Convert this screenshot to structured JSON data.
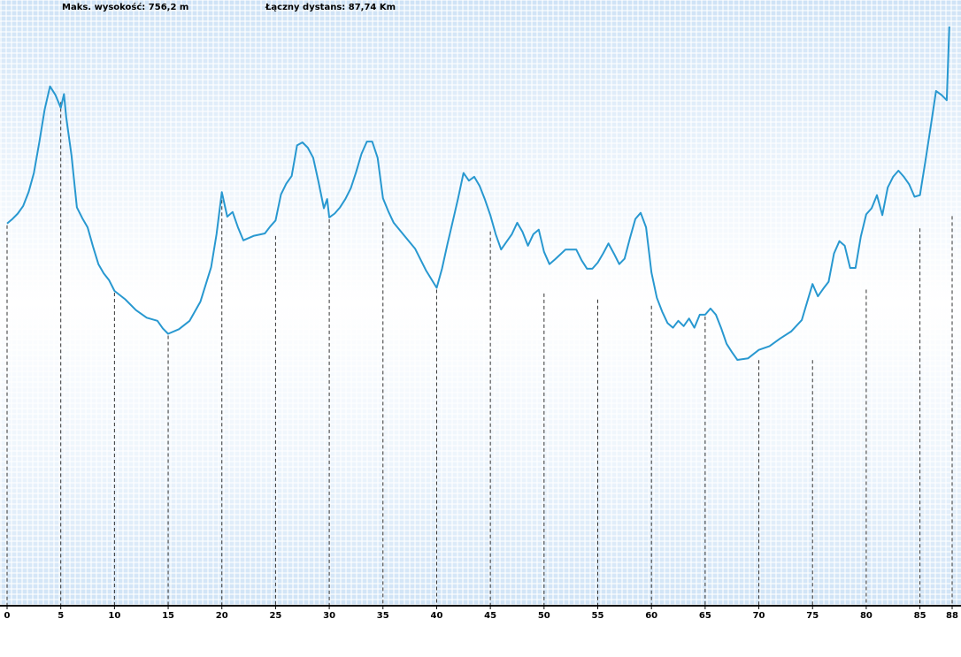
{
  "header": {
    "max_elevation_label": "Maks. wysokość:",
    "max_elevation_value": "756,2 m",
    "distance_label": "Łączny dystans:",
    "distance_value": "87,74 Km"
  },
  "colors": {
    "line": "#2898d0",
    "axis": "#000000",
    "dash": "#333333"
  },
  "chart_data": {
    "type": "line",
    "title": "",
    "xlabel": "",
    "ylabel": "",
    "xlim": [
      0,
      88
    ],
    "ylim": [
      0,
      756.2
    ],
    "grid": false,
    "x_ticks": [
      0,
      5,
      10,
      15,
      20,
      25,
      30,
      35,
      40,
      45,
      50,
      55,
      60,
      65,
      70,
      75,
      80,
      85,
      88
    ],
    "tick_labels": [
      "0",
      "5",
      "10",
      "15",
      "20",
      "25",
      "30",
      "35",
      "40",
      "45",
      "50",
      "55",
      "60",
      "65",
      "70",
      "75",
      "80",
      "85",
      "88"
    ],
    "marker_values": [
      499,
      660,
      411,
      355,
      540,
      485,
      507,
      503,
      415,
      491,
      410,
      402,
      394,
      380,
      323,
      323,
      415,
      495,
      511,
      756
    ],
    "series": [
      {
        "values": [
          [
            0,
            499
          ],
          [
            0.5,
            505
          ],
          [
            1,
            512
          ],
          [
            1.5,
            522
          ],
          [
            2,
            540
          ],
          [
            2.5,
            565
          ],
          [
            3,
            605
          ],
          [
            3.5,
            648
          ],
          [
            4,
            678
          ],
          [
            4.5,
            667
          ],
          [
            5,
            650
          ],
          [
            5.3,
            668
          ],
          [
            5.5,
            638
          ],
          [
            6,
            588
          ],
          [
            6.5,
            520
          ],
          [
            7,
            506
          ],
          [
            7.5,
            494
          ],
          [
            8,
            469
          ],
          [
            8.5,
            446
          ],
          [
            9,
            434
          ],
          [
            9.5,
            425
          ],
          [
            10,
            411
          ],
          [
            11,
            400
          ],
          [
            12,
            386
          ],
          [
            13,
            376
          ],
          [
            14,
            372
          ],
          [
            14.5,
            362
          ],
          [
            15,
            355
          ],
          [
            16,
            361
          ],
          [
            17,
            372
          ],
          [
            18,
            397
          ],
          [
            19,
            442
          ],
          [
            19.5,
            485
          ],
          [
            20,
            540
          ],
          [
            20.5,
            508
          ],
          [
            21,
            514
          ],
          [
            21.5,
            494
          ],
          [
            22,
            477
          ],
          [
            23,
            483
          ],
          [
            24,
            486
          ],
          [
            24.5,
            495
          ],
          [
            25,
            503
          ],
          [
            25.5,
            537
          ],
          [
            26,
            551
          ],
          [
            26.5,
            561
          ],
          [
            27,
            601
          ],
          [
            27.5,
            605
          ],
          [
            28,
            598
          ],
          [
            28.5,
            585
          ],
          [
            29,
            553
          ],
          [
            29.5,
            519
          ],
          [
            29.8,
            531
          ],
          [
            30,
            507
          ],
          [
            30.5,
            512
          ],
          [
            31,
            520
          ],
          [
            31.5,
            531
          ],
          [
            32,
            545
          ],
          [
            32.5,
            566
          ],
          [
            33,
            590
          ],
          [
            33.5,
            606
          ],
          [
            34,
            606
          ],
          [
            34.5,
            585
          ],
          [
            35,
            532
          ],
          [
            35.5,
            515
          ],
          [
            36,
            500
          ],
          [
            37,
            483
          ],
          [
            38,
            466
          ],
          [
            39,
            438
          ],
          [
            40,
            415
          ],
          [
            40.5,
            440
          ],
          [
            41,
            472
          ],
          [
            41.5,
            502
          ],
          [
            42,
            532
          ],
          [
            42.5,
            565
          ],
          [
            43,
            555
          ],
          [
            43.5,
            560
          ],
          [
            44,
            548
          ],
          [
            44.5,
            530
          ],
          [
            45,
            510
          ],
          [
            45.5,
            485
          ],
          [
            46,
            465
          ],
          [
            46.5,
            475
          ],
          [
            47,
            485
          ],
          [
            47.5,
            500
          ],
          [
            48,
            488
          ],
          [
            48.5,
            470
          ],
          [
            49,
            485
          ],
          [
            49.5,
            491
          ],
          [
            50,
            462
          ],
          [
            50.5,
            446
          ],
          [
            51,
            452
          ],
          [
            52,
            465
          ],
          [
            53,
            465
          ],
          [
            53.5,
            451
          ],
          [
            54,
            440
          ],
          [
            54.5,
            440
          ],
          [
            55,
            448
          ],
          [
            55.5,
            460
          ],
          [
            56,
            473
          ],
          [
            56.5,
            460
          ],
          [
            57,
            446
          ],
          [
            57.5,
            453
          ],
          [
            58,
            480
          ],
          [
            58.5,
            505
          ],
          [
            59,
            513
          ],
          [
            59.5,
            494
          ],
          [
            60,
            435
          ],
          [
            60.5,
            402
          ],
          [
            61,
            384
          ],
          [
            61.5,
            369
          ],
          [
            62,
            363
          ],
          [
            62.5,
            372
          ],
          [
            63,
            365
          ],
          [
            63.5,
            375
          ],
          [
            64,
            363
          ],
          [
            64.5,
            380
          ],
          [
            65,
            380
          ],
          [
            65.5,
            388
          ],
          [
            66,
            380
          ],
          [
            66.5,
            362
          ],
          [
            67,
            342
          ],
          [
            67.5,
            331
          ],
          [
            68,
            321
          ],
          [
            68.5,
            322
          ],
          [
            69,
            323
          ],
          [
            70,
            334
          ],
          [
            71,
            339
          ],
          [
            72,
            349
          ],
          [
            73,
            358
          ],
          [
            74,
            373
          ],
          [
            75,
            420
          ],
          [
            75.5,
            404
          ],
          [
            76,
            414
          ],
          [
            76.5,
            423
          ],
          [
            77,
            460
          ],
          [
            77.5,
            476
          ],
          [
            78,
            470
          ],
          [
            78.5,
            441
          ],
          [
            79,
            441
          ],
          [
            79.5,
            482
          ],
          [
            80,
            511
          ],
          [
            80.5,
            519
          ],
          [
            81,
            536
          ],
          [
            81.5,
            510
          ],
          [
            82,
            546
          ],
          [
            82.5,
            560
          ],
          [
            83,
            568
          ],
          [
            83.5,
            560
          ],
          [
            84,
            550
          ],
          [
            84.5,
            534
          ],
          [
            85,
            536
          ],
          [
            85.5,
            580
          ],
          [
            86,
            625
          ],
          [
            86.5,
            672
          ],
          [
            87,
            667
          ],
          [
            87.5,
            660
          ],
          [
            87.74,
            756.2
          ]
        ]
      }
    ]
  }
}
